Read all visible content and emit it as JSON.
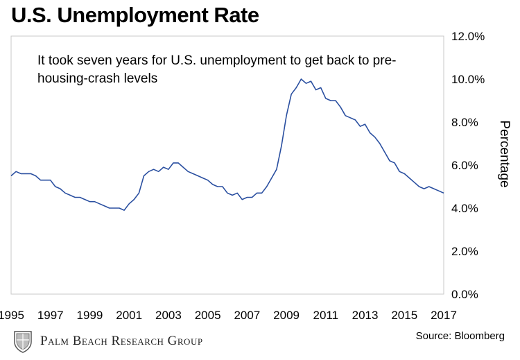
{
  "title": "U.S. Unemployment Rate",
  "annotation": "It took seven years for U.S. unemployment to get back to pre-housing-crash levels",
  "source": "Source: Bloomberg",
  "brand": {
    "name": "Palm Beach Research Group",
    "logo_icon": "crest-icon"
  },
  "colors": {
    "line": "#2a4fa0",
    "frame": "#c8c8c8"
  },
  "chart_data": {
    "type": "line",
    "title": "U.S. Unemployment Rate",
    "ylabel": "Percentage",
    "xlabel": "",
    "xlim": [
      1995,
      2017
    ],
    "ylim": [
      0,
      12
    ],
    "x_ticks": [
      1995,
      1997,
      1999,
      2001,
      2003,
      2005,
      2007,
      2009,
      2011,
      2013,
      2015,
      2017
    ],
    "x_tick_labels": [
      "1995",
      "1997",
      "1999",
      "2001",
      "2003",
      "2005",
      "2007",
      "2009",
      "2011",
      "2013",
      "2015",
      "2017"
    ],
    "y_ticks": [
      0,
      2,
      4,
      6,
      8,
      10,
      12
    ],
    "y_tick_labels": [
      "0.0%",
      "2.0%",
      "4.0%",
      "6.0%",
      "8.0%",
      "10.0%",
      "12.0%"
    ],
    "y_axis_side": "right",
    "grid": false,
    "series": [
      {
        "name": "",
        "x": [
          1995.0,
          1995.25,
          1995.5,
          1995.75,
          1996.0,
          1996.25,
          1996.5,
          1996.75,
          1997.0,
          1997.25,
          1997.5,
          1997.75,
          1998.0,
          1998.25,
          1998.5,
          1998.75,
          1999.0,
          1999.25,
          1999.5,
          1999.75,
          2000.0,
          2000.25,
          2000.5,
          2000.75,
          2001.0,
          2001.25,
          2001.5,
          2001.75,
          2002.0,
          2002.25,
          2002.5,
          2002.75,
          2003.0,
          2003.25,
          2003.5,
          2003.75,
          2004.0,
          2004.25,
          2004.5,
          2004.75,
          2005.0,
          2005.25,
          2005.5,
          2005.75,
          2006.0,
          2006.25,
          2006.5,
          2006.75,
          2007.0,
          2007.25,
          2007.5,
          2007.75,
          2008.0,
          2008.25,
          2008.5,
          2008.75,
          2009.0,
          2009.25,
          2009.5,
          2009.75,
          2010.0,
          2010.25,
          2010.5,
          2010.75,
          2011.0,
          2011.25,
          2011.5,
          2011.75,
          2012.0,
          2012.25,
          2012.5,
          2012.75,
          2013.0,
          2013.25,
          2013.5,
          2013.75,
          2014.0,
          2014.25,
          2014.5,
          2014.75,
          2015.0,
          2015.25,
          2015.5,
          2015.75,
          2016.0,
          2016.25,
          2016.5,
          2016.75,
          2017.0
        ],
        "y": [
          5.5,
          5.7,
          5.6,
          5.6,
          5.6,
          5.5,
          5.3,
          5.3,
          5.3,
          5.0,
          4.9,
          4.7,
          4.6,
          4.5,
          4.5,
          4.4,
          4.3,
          4.3,
          4.2,
          4.1,
          4.0,
          4.0,
          4.0,
          3.9,
          4.2,
          4.4,
          4.7,
          5.5,
          5.7,
          5.8,
          5.7,
          5.9,
          5.8,
          6.1,
          6.1,
          5.9,
          5.7,
          5.6,
          5.5,
          5.4,
          5.3,
          5.1,
          5.0,
          5.0,
          4.7,
          4.6,
          4.7,
          4.4,
          4.5,
          4.5,
          4.7,
          4.7,
          5.0,
          5.4,
          5.8,
          6.9,
          8.3,
          9.3,
          9.6,
          10.0,
          9.8,
          9.9,
          9.5,
          9.6,
          9.1,
          9.0,
          9.0,
          8.7,
          8.3,
          8.2,
          8.1,
          7.8,
          7.9,
          7.5,
          7.3,
          7.0,
          6.6,
          6.2,
          6.1,
          5.7,
          5.6,
          5.4,
          5.2,
          5.0,
          4.9,
          5.0,
          4.9,
          4.8,
          4.7
        ]
      }
    ]
  }
}
